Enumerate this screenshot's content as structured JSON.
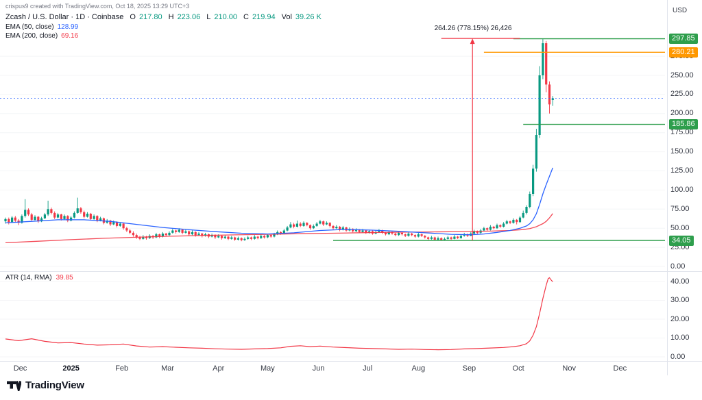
{
  "credit": "crispus9 created with TradingView.com, Oct 18, 2025 13:29 UTC+3",
  "currency": "USD",
  "annotation": "264.26 (778.15%) 26,426",
  "footer": {
    "brand": "TradingView"
  },
  "legend": {
    "symbol": "Zcash / U.S. Dollar · 1D · Coinbase",
    "ohlc": {
      "o_label": "O",
      "o": "217.80",
      "h_label": "H",
      "h": "223.06",
      "l_label": "L",
      "l": "210.00",
      "c_label": "C",
      "c": "219.94",
      "vol_label": "Vol",
      "vol": "39.26 K"
    },
    "ema50_label": "EMA (50, close)",
    "ema50_value": "128.99",
    "ema200_label": "EMA (200, close)",
    "ema200_value": "69.16"
  },
  "atr_legend": {
    "label": "ATR (14, RMA)",
    "value": "39.85"
  },
  "colors": {
    "up": "#089981",
    "down": "#f23645",
    "ema50": "#2962ff",
    "ema200": "#f23645",
    "green_level": "#2e9e4c",
    "orange_level": "#ff9800",
    "atr": "#f23645",
    "last_price": "#2962ff",
    "axis_text": "#363a45",
    "grid": "#f4f5f7",
    "separator": "#e0e3eb"
  },
  "chart_data": {
    "type": "candlestick",
    "title": "Zcash / U.S. Dollar · 1D · Coinbase",
    "step_days": 2,
    "price_ticks": [
      275,
      250,
      225,
      200,
      175,
      150,
      125,
      100,
      75,
      50,
      25,
      0
    ],
    "price_badges": [
      {
        "label": "297.85",
        "price": 297.85,
        "color": "#2e9e4c"
      },
      {
        "label": "280.21",
        "price": 280.21,
        "color": "#ff9800"
      },
      {
        "label": "185.86",
        "price": 185.86,
        "color": "#2e9e4c"
      },
      {
        "label": "34.05",
        "price": 34.05,
        "color": "#2e9e4c"
      }
    ],
    "levels": [
      {
        "price": 297.85,
        "from_i": 155,
        "color": "#2e9e4c"
      },
      {
        "price": 280.21,
        "from_i": 146,
        "color": "#ff9800"
      },
      {
        "price": 185.86,
        "from_i": 158,
        "color": "#2e9e4c"
      },
      {
        "price": 34.05,
        "from_i": 100,
        "color": "#2e9e4c"
      }
    ],
    "last_price": 219.94,
    "measure": {
      "i": 142.5,
      "from_price": 34.05,
      "to_price": 298.31,
      "bar_from_i": 133,
      "bar_to_i": 157,
      "text": "264.26 (778.15%) 26,426"
    },
    "time_labels": [
      {
        "label": "Dec",
        "i": 4.5
      },
      {
        "label": "2025",
        "i": 20,
        "year": true
      },
      {
        "label": "Feb",
        "i": 35.5
      },
      {
        "label": "Mar",
        "i": 49.5
      },
      {
        "label": "Apr",
        "i": 65
      },
      {
        "label": "May",
        "i": 80
      },
      {
        "label": "Jun",
        "i": 95.5
      },
      {
        "label": "Jul",
        "i": 110.5
      },
      {
        "label": "Aug",
        "i": 126
      },
      {
        "label": "Sep",
        "i": 141.5
      },
      {
        "label": "Oct",
        "i": 156.5
      },
      {
        "label": "Nov",
        "i": 172
      },
      {
        "label": "Dec",
        "i": 187.5
      }
    ],
    "candles": [
      [
        59,
        64,
        56,
        62
      ],
      [
        62,
        64,
        55,
        58
      ],
      [
        58,
        66,
        57,
        64
      ],
      [
        64,
        66,
        58,
        60
      ],
      [
        60,
        62,
        54,
        57
      ],
      [
        57,
        68,
        56,
        66
      ],
      [
        66,
        88,
        64,
        74
      ],
      [
        74,
        76,
        66,
        68
      ],
      [
        68,
        70,
        59,
        61
      ],
      [
        61,
        67,
        60,
        65
      ],
      [
        65,
        66,
        57,
        59
      ],
      [
        59,
        65,
        58,
        63
      ],
      [
        63,
        70,
        62,
        68
      ],
      [
        68,
        86,
        66,
        75
      ],
      [
        75,
        77,
        68,
        70
      ],
      [
        70,
        72,
        62,
        64
      ],
      [
        64,
        70,
        63,
        68
      ],
      [
        68,
        69,
        60,
        62
      ],
      [
        62,
        68,
        61,
        66
      ],
      [
        66,
        67,
        58,
        60
      ],
      [
        60,
        66,
        59,
        64
      ],
      [
        64,
        72,
        63,
        70
      ],
      [
        70,
        90,
        69,
        76
      ],
      [
        76,
        78,
        69,
        71
      ],
      [
        71,
        73,
        63,
        65
      ],
      [
        65,
        71,
        64,
        69
      ],
      [
        69,
        70,
        60,
        62
      ],
      [
        62,
        68,
        61,
        66
      ],
      [
        66,
        67,
        58,
        60
      ],
      [
        60,
        65,
        59,
        63
      ],
      [
        63,
        64,
        55,
        57
      ],
      [
        57,
        62,
        56,
        60
      ],
      [
        60,
        61,
        53,
        55
      ],
      [
        55,
        60,
        54,
        58
      ],
      [
        58,
        59,
        51,
        53
      ],
      [
        53,
        58,
        52,
        56
      ],
      [
        56,
        57,
        48,
        50
      ],
      [
        50,
        52,
        45,
        47
      ],
      [
        47,
        49,
        42,
        44
      ],
      [
        44,
        46,
        39,
        41
      ],
      [
        41,
        43,
        36,
        38
      ],
      [
        38,
        40,
        34.5,
        36
      ],
      [
        36,
        41,
        35,
        39
      ],
      [
        39,
        40,
        35,
        37
      ],
      [
        37,
        42,
        36,
        40
      ],
      [
        40,
        41,
        36,
        38
      ],
      [
        38,
        44,
        37,
        42
      ],
      [
        42,
        43,
        37,
        39
      ],
      [
        39,
        45,
        38,
        43
      ],
      [
        43,
        44,
        39,
        41
      ],
      [
        41,
        46,
        40,
        44
      ],
      [
        44,
        49,
        43,
        47
      ],
      [
        47,
        48,
        43,
        45
      ],
      [
        45,
        50,
        44,
        48
      ],
      [
        48,
        49,
        42,
        44
      ],
      [
        44,
        48,
        43,
        46
      ],
      [
        46,
        47,
        40,
        42
      ],
      [
        42,
        47,
        41,
        45
      ],
      [
        45,
        46,
        39,
        41
      ],
      [
        41,
        45,
        40,
        43
      ],
      [
        43,
        44,
        38,
        40
      ],
      [
        40,
        44,
        39,
        42
      ],
      [
        42,
        43,
        37,
        39
      ],
      [
        39,
        43,
        38,
        41
      ],
      [
        41,
        42,
        36,
        38
      ],
      [
        38,
        42,
        37,
        40
      ],
      [
        40,
        41,
        35,
        37
      ],
      [
        37,
        41,
        36,
        39
      ],
      [
        39,
        40,
        34.5,
        36
      ],
      [
        36,
        40,
        35,
        38
      ],
      [
        38,
        39,
        33.5,
        35
      ],
      [
        35,
        39,
        34,
        37
      ],
      [
        37,
        38,
        33,
        34.5
      ],
      [
        34.5,
        38,
        33.5,
        36
      ],
      [
        36,
        40,
        35,
        38
      ],
      [
        38,
        39,
        34.5,
        36
      ],
      [
        36,
        41,
        35,
        39
      ],
      [
        39,
        40,
        35.5,
        37
      ],
      [
        37,
        42,
        36,
        40
      ],
      [
        40,
        41,
        36.5,
        38
      ],
      [
        38,
        43,
        37,
        41
      ],
      [
        41,
        42,
        37.5,
        39
      ],
      [
        39,
        44,
        38,
        42
      ],
      [
        42,
        47,
        41,
        45
      ],
      [
        45,
        46,
        41.5,
        43
      ],
      [
        43,
        49,
        42,
        47
      ],
      [
        47,
        53,
        46,
        51
      ],
      [
        51,
        58,
        50,
        55
      ],
      [
        55,
        57,
        50,
        52
      ],
      [
        52,
        60,
        51,
        56
      ],
      [
        56,
        58,
        51.5,
        53
      ],
      [
        53,
        59,
        52,
        57
      ],
      [
        57,
        58,
        52.5,
        54
      ],
      [
        54,
        55,
        48,
        50
      ],
      [
        50,
        55,
        49,
        53
      ],
      [
        53,
        58,
        52,
        56
      ],
      [
        56,
        61,
        55,
        59
      ],
      [
        59,
        60,
        53,
        55
      ],
      [
        55,
        59,
        54,
        57
      ],
      [
        57,
        58,
        51,
        53
      ],
      [
        53,
        54,
        48,
        50
      ],
      [
        50,
        54,
        49,
        52
      ],
      [
        52,
        53,
        46,
        48
      ],
      [
        48,
        53,
        47,
        51
      ],
      [
        51,
        52,
        45.5,
        47
      ],
      [
        47,
        51,
        46,
        49
      ],
      [
        49,
        50,
        44.5,
        46
      ],
      [
        46,
        50,
        45,
        48
      ],
      [
        48,
        49,
        43.5,
        45
      ],
      [
        45,
        49,
        44,
        47
      ],
      [
        47,
        48,
        42.5,
        44
      ],
      [
        44,
        48,
        43,
        46
      ],
      [
        46,
        47,
        41.5,
        43
      ],
      [
        43,
        47,
        42,
        45
      ],
      [
        45,
        49,
        44,
        47
      ],
      [
        47,
        48,
        42.5,
        44
      ],
      [
        44,
        45,
        40.5,
        42
      ],
      [
        42,
        47,
        41,
        45
      ],
      [
        45,
        46,
        41.5,
        43
      ],
      [
        43,
        44,
        39.5,
        41
      ],
      [
        41,
        46,
        40,
        44
      ],
      [
        44,
        45,
        40.5,
        42
      ],
      [
        42,
        43,
        38.5,
        40
      ],
      [
        40,
        45,
        39,
        43
      ],
      [
        43,
        44,
        39.5,
        41
      ],
      [
        41,
        42,
        37.5,
        39
      ],
      [
        39,
        44,
        38,
        42
      ],
      [
        42,
        43,
        38.5,
        40
      ],
      [
        40,
        41,
        36.5,
        38
      ],
      [
        38,
        39,
        34.5,
        36
      ],
      [
        36,
        40,
        35,
        38
      ],
      [
        38,
        39,
        34,
        35
      ],
      [
        35,
        39,
        34.2,
        37
      ],
      [
        37,
        38,
        34.05,
        34.8
      ],
      [
        34.8,
        38,
        34.3,
        36
      ],
      [
        36,
        40,
        35,
        38
      ],
      [
        38,
        39,
        34.8,
        36
      ],
      [
        36,
        41,
        35.5,
        39
      ],
      [
        39,
        40,
        36,
        37
      ],
      [
        37,
        42,
        36.5,
        40
      ],
      [
        40,
        44,
        39,
        42
      ],
      [
        42,
        43,
        38.5,
        40
      ],
      [
        40,
        45,
        39.5,
        43
      ],
      [
        43,
        48,
        42,
        46
      ],
      [
        46,
        47,
        42.5,
        44
      ],
      [
        44,
        49,
        43,
        47
      ],
      [
        47,
        52,
        46,
        50
      ],
      [
        50,
        51,
        46.5,
        48
      ],
      [
        48,
        54,
        47,
        52
      ],
      [
        52,
        53,
        48.5,
        50
      ],
      [
        50,
        56,
        49,
        54
      ],
      [
        54,
        55,
        50.5,
        52
      ],
      [
        52,
        58,
        51,
        56
      ],
      [
        56,
        61,
        55,
        59
      ],
      [
        59,
        60,
        55.5,
        57
      ],
      [
        57,
        63,
        56,
        61
      ],
      [
        61,
        62,
        55,
        58
      ],
      [
        58,
        66,
        57,
        64
      ],
      [
        64,
        73,
        63,
        70
      ],
      [
        70,
        80,
        68,
        78
      ],
      [
        78,
        98,
        76,
        95
      ],
      [
        95,
        133,
        92,
        128
      ],
      [
        128,
        180,
        124,
        172
      ],
      [
        172,
        262,
        168,
        250
      ],
      [
        250,
        297.85,
        245,
        292
      ],
      [
        292,
        295,
        228,
        238
      ],
      [
        238,
        242,
        200,
        212
      ],
      [
        217.8,
        223.06,
        210,
        219.94
      ]
    ],
    "ema50": [
      [
        0,
        57
      ],
      [
        8,
        59
      ],
      [
        16,
        61
      ],
      [
        24,
        61
      ],
      [
        32,
        59
      ],
      [
        40,
        55
      ],
      [
        48,
        51
      ],
      [
        56,
        48
      ],
      [
        64,
        45.5
      ],
      [
        72,
        43.5
      ],
      [
        80,
        42.5
      ],
      [
        88,
        44
      ],
      [
        96,
        47
      ],
      [
        104,
        48.5
      ],
      [
        112,
        47.5
      ],
      [
        120,
        46
      ],
      [
        128,
        44
      ],
      [
        136,
        42
      ],
      [
        142,
        41.5
      ],
      [
        146,
        42.5
      ],
      [
        150,
        44.5
      ],
      [
        154,
        47
      ],
      [
        157,
        50
      ],
      [
        159,
        53
      ],
      [
        160,
        56
      ],
      [
        161,
        61
      ],
      [
        162,
        69
      ],
      [
        163,
        81
      ],
      [
        164,
        95
      ],
      [
        165,
        107
      ],
      [
        166,
        118
      ],
      [
        167,
        129
      ]
    ],
    "ema200": [
      [
        0,
        31
      ],
      [
        10,
        33
      ],
      [
        20,
        35
      ],
      [
        30,
        36.8
      ],
      [
        40,
        38.2
      ],
      [
        50,
        39.5
      ],
      [
        60,
        40.5
      ],
      [
        70,
        41.3
      ],
      [
        80,
        42
      ],
      [
        90,
        42.8
      ],
      [
        100,
        43.5
      ],
      [
        110,
        44.2
      ],
      [
        120,
        44.8
      ],
      [
        130,
        45.2
      ],
      [
        140,
        45.6
      ],
      [
        148,
        46.2
      ],
      [
        154,
        47
      ],
      [
        158,
        48.2
      ],
      [
        160,
        49.5
      ],
      [
        162,
        52
      ],
      [
        164,
        56
      ],
      [
        165,
        59
      ],
      [
        166,
        63.5
      ],
      [
        167,
        69.2
      ]
    ],
    "atr": {
      "label": "ATR (14, RMA)",
      "value": 39.85,
      "ticks": [
        40,
        30,
        20,
        10,
        0
      ],
      "points": [
        [
          0,
          9.5
        ],
        [
          4,
          8.6
        ],
        [
          8,
          9.6
        ],
        [
          12,
          8.2
        ],
        [
          16,
          7.4
        ],
        [
          20,
          7.6
        ],
        [
          24,
          6.8
        ],
        [
          28,
          6.2
        ],
        [
          32,
          6.4
        ],
        [
          36,
          6.8
        ],
        [
          40,
          5.8
        ],
        [
          44,
          5.2
        ],
        [
          48,
          5.4
        ],
        [
          52,
          5.1
        ],
        [
          56,
          4.8
        ],
        [
          60,
          4.6
        ],
        [
          64,
          4.3
        ],
        [
          68,
          4.1
        ],
        [
          72,
          4
        ],
        [
          76,
          4.2
        ],
        [
          80,
          4.4
        ],
        [
          84,
          4.8
        ],
        [
          87,
          5.6
        ],
        [
          90,
          5.9
        ],
        [
          93,
          5.4
        ],
        [
          96,
          5.7
        ],
        [
          100,
          5.2
        ],
        [
          104,
          4.9
        ],
        [
          108,
          4.6
        ],
        [
          112,
          4.4
        ],
        [
          116,
          4.2
        ],
        [
          120,
          4
        ],
        [
          124,
          4.1
        ],
        [
          128,
          3.9
        ],
        [
          132,
          3.8
        ],
        [
          136,
          3.9
        ],
        [
          140,
          4.2
        ],
        [
          144,
          4.4
        ],
        [
          148,
          4.7
        ],
        [
          152,
          5
        ],
        [
          155,
          5.4
        ],
        [
          157,
          5.9
        ],
        [
          159,
          7
        ],
        [
          160,
          8.5
        ],
        [
          161,
          11.5
        ],
        [
          162,
          16
        ],
        [
          163,
          23
        ],
        [
          164,
          31
        ],
        [
          165,
          38
        ],
        [
          165.6,
          41.5
        ],
        [
          166,
          42
        ],
        [
          166.5,
          40.8
        ],
        [
          167,
          39.85
        ]
      ]
    }
  }
}
